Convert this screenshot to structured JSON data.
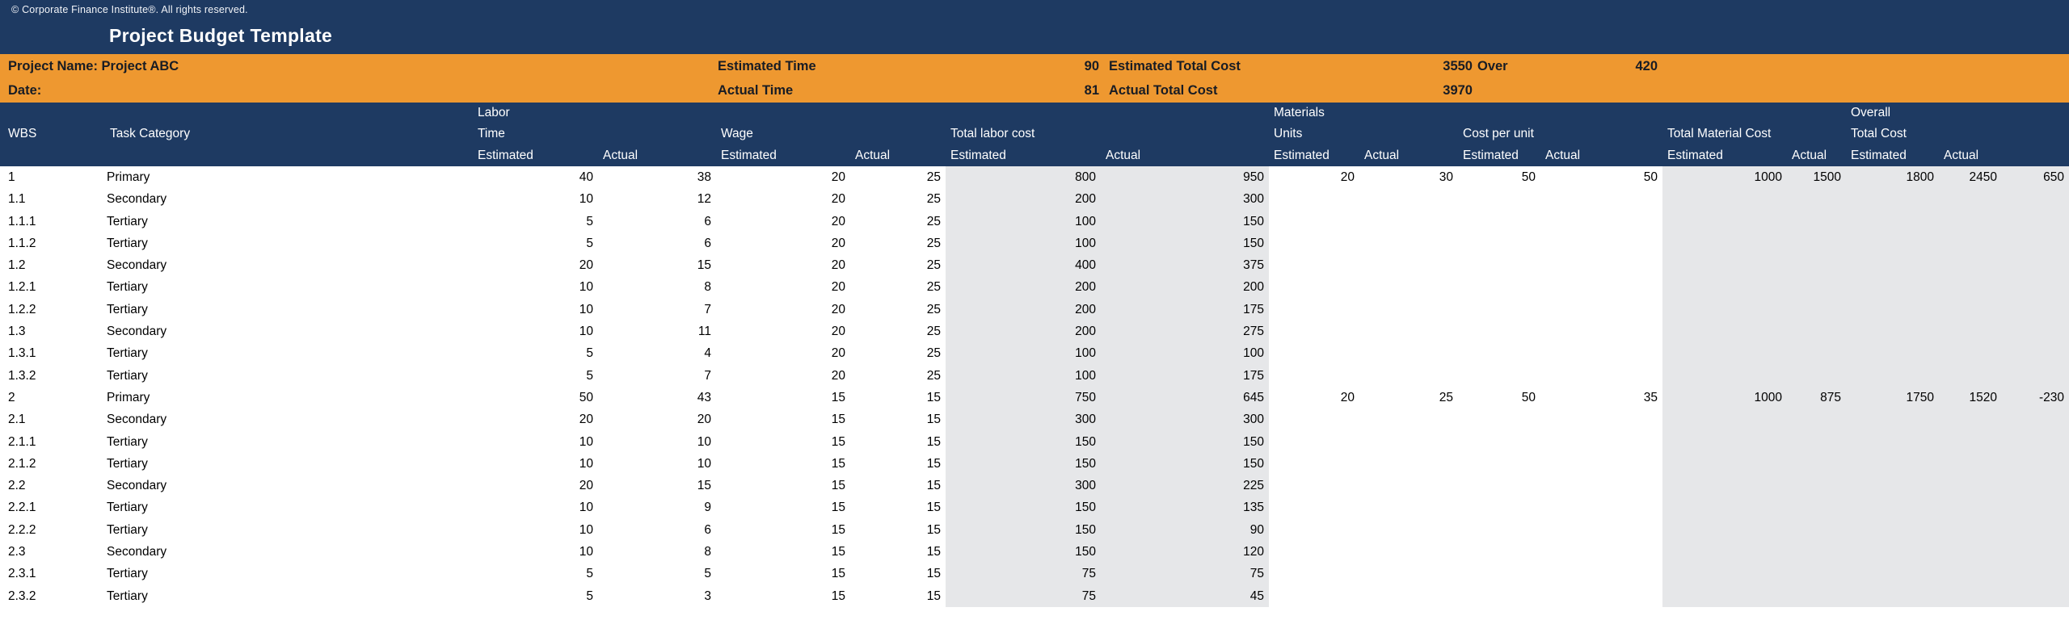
{
  "topbar": {
    "copyright": "© Corporate Finance Institute®. All rights reserved.",
    "title": "Project Budget Template"
  },
  "info_bar": {
    "project_name_label": "Project Name: Project ABC",
    "date_label": "Date:",
    "estimated_time_label": "Estimated Time",
    "estimated_time_value": "90",
    "estimated_total_cost_label": "Estimated Total Cost",
    "estimated_total_cost_value": "3550",
    "over_label": "Over",
    "over_value": "420",
    "actual_time_label": "Actual Time",
    "actual_time_value": "81",
    "actual_total_cost_label": "Actual Total Cost",
    "actual_total_cost_value": "3970"
  },
  "table": {
    "header": {
      "wbs": "WBS",
      "task_category": "Task Category",
      "labor": "Labor",
      "time": "Time",
      "wage": "Wage",
      "total_labor_cost": "Total labor cost",
      "materials": "Materials",
      "units": "Units",
      "cost_per_unit": "Cost per unit",
      "total_material_cost": "Total Material Cost",
      "overall": "Overall",
      "total_cost": "Total Cost",
      "estimated": "Estimated",
      "actual": "Actual"
    },
    "rows": [
      [
        "1",
        "Primary",
        "40",
        "38",
        "20",
        "25",
        "800",
        "950",
        "20",
        "30",
        "50",
        "50",
        "1000",
        "1500",
        "1800",
        "2450",
        "650"
      ],
      [
        "1.1",
        "Secondary",
        "10",
        "12",
        "20",
        "25",
        "200",
        "300",
        "",
        "",
        "",
        "",
        "",
        "",
        "",
        "",
        ""
      ],
      [
        "1.1.1",
        "Tertiary",
        "5",
        "6",
        "20",
        "25",
        "100",
        "150",
        "",
        "",
        "",
        "",
        "",
        "",
        "",
        "",
        ""
      ],
      [
        "1.1.2",
        "Tertiary",
        "5",
        "6",
        "20",
        "25",
        "100",
        "150",
        "",
        "",
        "",
        "",
        "",
        "",
        "",
        "",
        ""
      ],
      [
        "1.2",
        "Secondary",
        "20",
        "15",
        "20",
        "25",
        "400",
        "375",
        "",
        "",
        "",
        "",
        "",
        "",
        "",
        "",
        ""
      ],
      [
        "1.2.1",
        "Tertiary",
        "10",
        "8",
        "20",
        "25",
        "200",
        "200",
        "",
        "",
        "",
        "",
        "",
        "",
        "",
        "",
        ""
      ],
      [
        "1.2.2",
        "Tertiary",
        "10",
        "7",
        "20",
        "25",
        "200",
        "175",
        "",
        "",
        "",
        "",
        "",
        "",
        "",
        "",
        ""
      ],
      [
        "1.3",
        "Secondary",
        "10",
        "11",
        "20",
        "25",
        "200",
        "275",
        "",
        "",
        "",
        "",
        "",
        "",
        "",
        "",
        ""
      ],
      [
        "1.3.1",
        "Tertiary",
        "5",
        "4",
        "20",
        "25",
        "100",
        "100",
        "",
        "",
        "",
        "",
        "",
        "",
        "",
        "",
        ""
      ],
      [
        "1.3.2",
        "Tertiary",
        "5",
        "7",
        "20",
        "25",
        "100",
        "175",
        "",
        "",
        "",
        "",
        "",
        "",
        "",
        "",
        ""
      ],
      [
        "2",
        "Primary",
        "50",
        "43",
        "15",
        "15",
        "750",
        "645",
        "20",
        "25",
        "50",
        "35",
        "1000",
        "875",
        "1750",
        "1520",
        "-230"
      ],
      [
        "2.1",
        "Secondary",
        "20",
        "20",
        "15",
        "15",
        "300",
        "300",
        "",
        "",
        "",
        "",
        "",
        "",
        "",
        "",
        ""
      ],
      [
        "2.1.1",
        "Tertiary",
        "10",
        "10",
        "15",
        "15",
        "150",
        "150",
        "",
        "",
        "",
        "",
        "",
        "",
        "",
        "",
        ""
      ],
      [
        "2.1.2",
        "Tertiary",
        "10",
        "10",
        "15",
        "15",
        "150",
        "150",
        "",
        "",
        "",
        "",
        "",
        "",
        "",
        "",
        ""
      ],
      [
        "2.2",
        "Secondary",
        "20",
        "15",
        "15",
        "15",
        "300",
        "225",
        "",
        "",
        "",
        "",
        "",
        "",
        "",
        "",
        ""
      ],
      [
        "2.2.1",
        "Tertiary",
        "10",
        "9",
        "15",
        "15",
        "150",
        "135",
        "",
        "",
        "",
        "",
        "",
        "",
        "",
        "",
        ""
      ],
      [
        "2.2.2",
        "Tertiary",
        "10",
        "6",
        "15",
        "15",
        "150",
        "90",
        "",
        "",
        "",
        "",
        "",
        "",
        "",
        "",
        ""
      ],
      [
        "2.3",
        "Secondary",
        "10",
        "8",
        "15",
        "15",
        "150",
        "120",
        "",
        "",
        "",
        "",
        "",
        "",
        "",
        "",
        ""
      ],
      [
        "2.3.1",
        "Tertiary",
        "5",
        "5",
        "15",
        "15",
        "75",
        "75",
        "",
        "",
        "",
        "",
        "",
        "",
        "",
        "",
        ""
      ],
      [
        "2.3.2",
        "Tertiary",
        "5",
        "3",
        "15",
        "15",
        "75",
        "45",
        "",
        "",
        "",
        "",
        "",
        "",
        "",
        "",
        ""
      ]
    ],
    "column_keys": [
      "wbs",
      "task-category",
      "labor-time-estimated",
      "labor-time-actual",
      "wage-estimated",
      "wage-actual",
      "total-labor-cost-estimated",
      "total-labor-cost-actual",
      "materials-units-estimated",
      "materials-units-actual",
      "cost-per-unit-estimated",
      "cost-per-unit-actual",
      "total-material-cost-estimated",
      "total-material-cost-actual",
      "overall-total-cost-estimated",
      "overall-total-cost-actual",
      "overall-over-amount"
    ]
  },
  "colors": {
    "navy": "#1e3a62",
    "orange": "#ee9830",
    "shade": "#e6e7e9",
    "header_text": "#ffffff",
    "body_text": "#000000"
  }
}
